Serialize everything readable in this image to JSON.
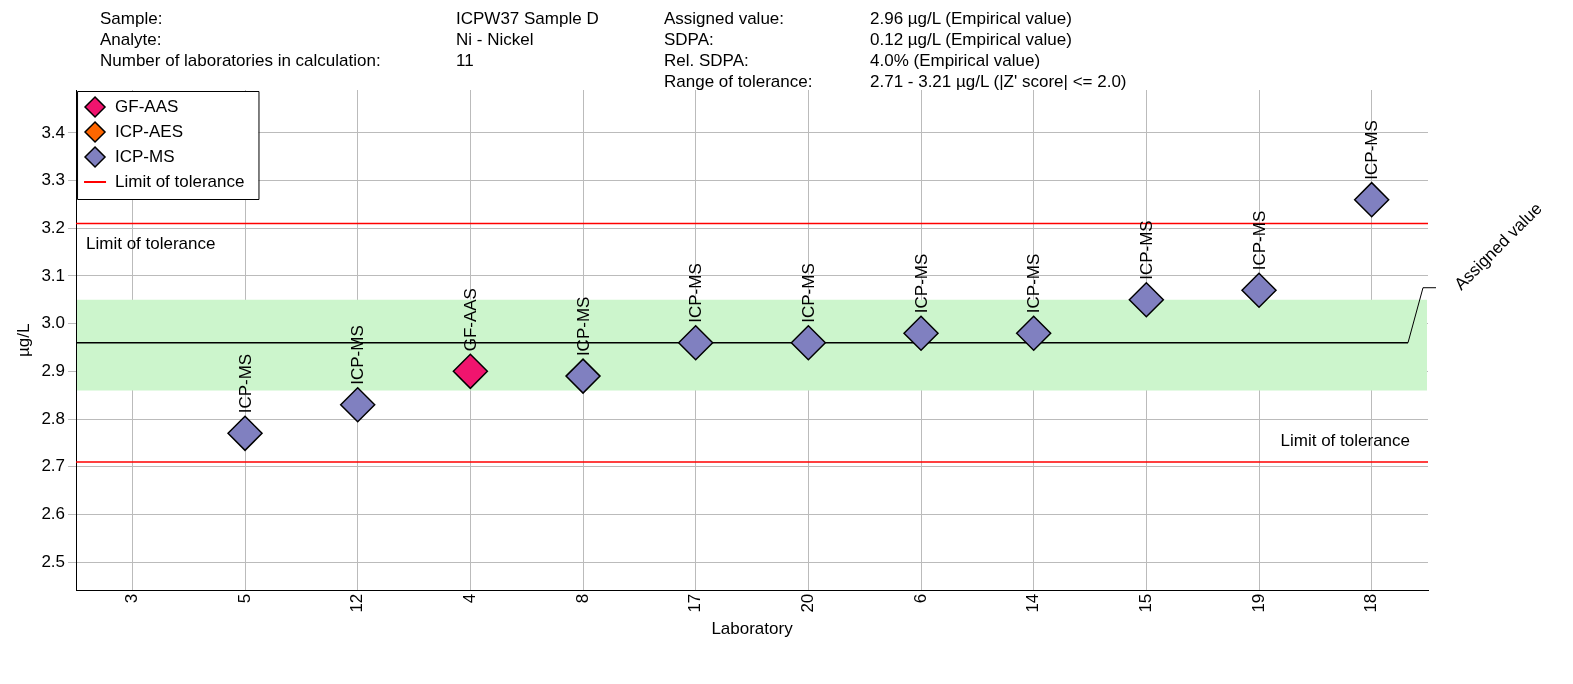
{
  "chart_data": {
    "type": "scatter",
    "annotations": [
      "Sample:",
      "ICPW37 Sample D",
      "Assigned value:",
      "2.96 µg/L (Empirical value)",
      "Analyte:",
      "Ni - Nickel",
      "SDPA:",
      "0.12 µg/L (Empirical value)",
      "Number of laboratories in calculation:",
      "11",
      "Rel. SDPA:",
      "4.0% (Empirical value)",
      "Range of tolerance:",
      "2.71 - 3.21 µg/L (|Z' score| <= 2.0)"
    ],
    "xlabel": "Laboratory",
    "ylabel": "µg/L",
    "categories": [
      "3",
      "5",
      "12",
      "4",
      "8",
      "17",
      "20",
      "6",
      "14",
      "15",
      "19",
      "18"
    ],
    "series": [
      {
        "name": "GF-AAS",
        "color": "#f0146e",
        "values": [
          null,
          null,
          null,
          2.9,
          null,
          null,
          null,
          null,
          null,
          null,
          null,
          null
        ]
      },
      {
        "name": "ICP-AES",
        "color": "#ff6600",
        "values": [
          null,
          null,
          null,
          null,
          null,
          null,
          null,
          null,
          null,
          null,
          null,
          null
        ]
      },
      {
        "name": "ICP-MS",
        "color": "#8080c0",
        "values": [
          null,
          2.77,
          2.83,
          null,
          2.89,
          2.96,
          2.96,
          2.98,
          2.98,
          3.05,
          3.07,
          3.26
        ]
      }
    ],
    "ref_lines": [
      {
        "axis": "y",
        "value": 3.21,
        "label": "Limit of tolerance",
        "color": "#ff0000"
      },
      {
        "axis": "y",
        "value": 2.71,
        "label": "Limit of tolerance",
        "color": "#ff0000"
      },
      {
        "axis": "y",
        "value": 2.96,
        "label": "Assigned value",
        "color": "#000000"
      }
    ],
    "bands": [
      {
        "axis": "y",
        "from": 2.86,
        "to": 3.05,
        "color": "#ccf5cc"
      }
    ],
    "ylim": [
      2.44,
      3.49
    ],
    "yticks": [
      2.5,
      2.6,
      2.7,
      2.8,
      2.9,
      {
        "value": 3,
        "label": "3.0"
      },
      3.1,
      3.2,
      3.3,
      3.4
    ],
    "grid": true,
    "legend": "top left",
    "marker": "diamond"
  }
}
